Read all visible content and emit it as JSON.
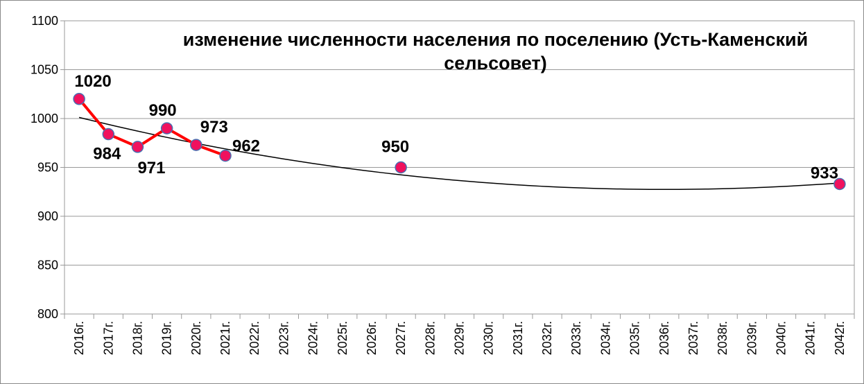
{
  "chart_data": {
    "type": "line",
    "title": "изменение численности населения по поселению (Усть-Каменский сельсовет)",
    "categories": [
      "2016г.",
      "2017г.",
      "2018г.",
      "2019г.",
      "2020г.",
      "2021г.",
      "2022г.",
      "2023г.",
      "2024г.",
      "2025г.",
      "2026г.",
      "2027г.",
      "2028г.",
      "2029г.",
      "2030г.",
      "2031г.",
      "2032г.",
      "2033г.",
      "2034г.",
      "2035г.",
      "2036г.",
      "2037г.",
      "2038г.",
      "2039г.",
      "2040г.",
      "2041г.",
      "2042г."
    ],
    "series": [
      {
        "color": "#ff0000",
        "marker_color": "#f0115e",
        "values": [
          1020,
          984,
          971,
          990,
          973,
          962,
          null,
          null,
          null,
          null,
          null,
          950,
          null,
          null,
          null,
          null,
          null,
          null,
          null,
          null,
          null,
          null,
          null,
          null,
          null,
          null,
          933
        ]
      }
    ],
    "trendline": {
      "type": "polynomial",
      "order": 2,
      "color": "#000000"
    },
    "ylim": [
      800,
      1100
    ],
    "yticks": [
      800,
      850,
      900,
      950,
      1000,
      1050,
      1100
    ],
    "grid": true
  }
}
